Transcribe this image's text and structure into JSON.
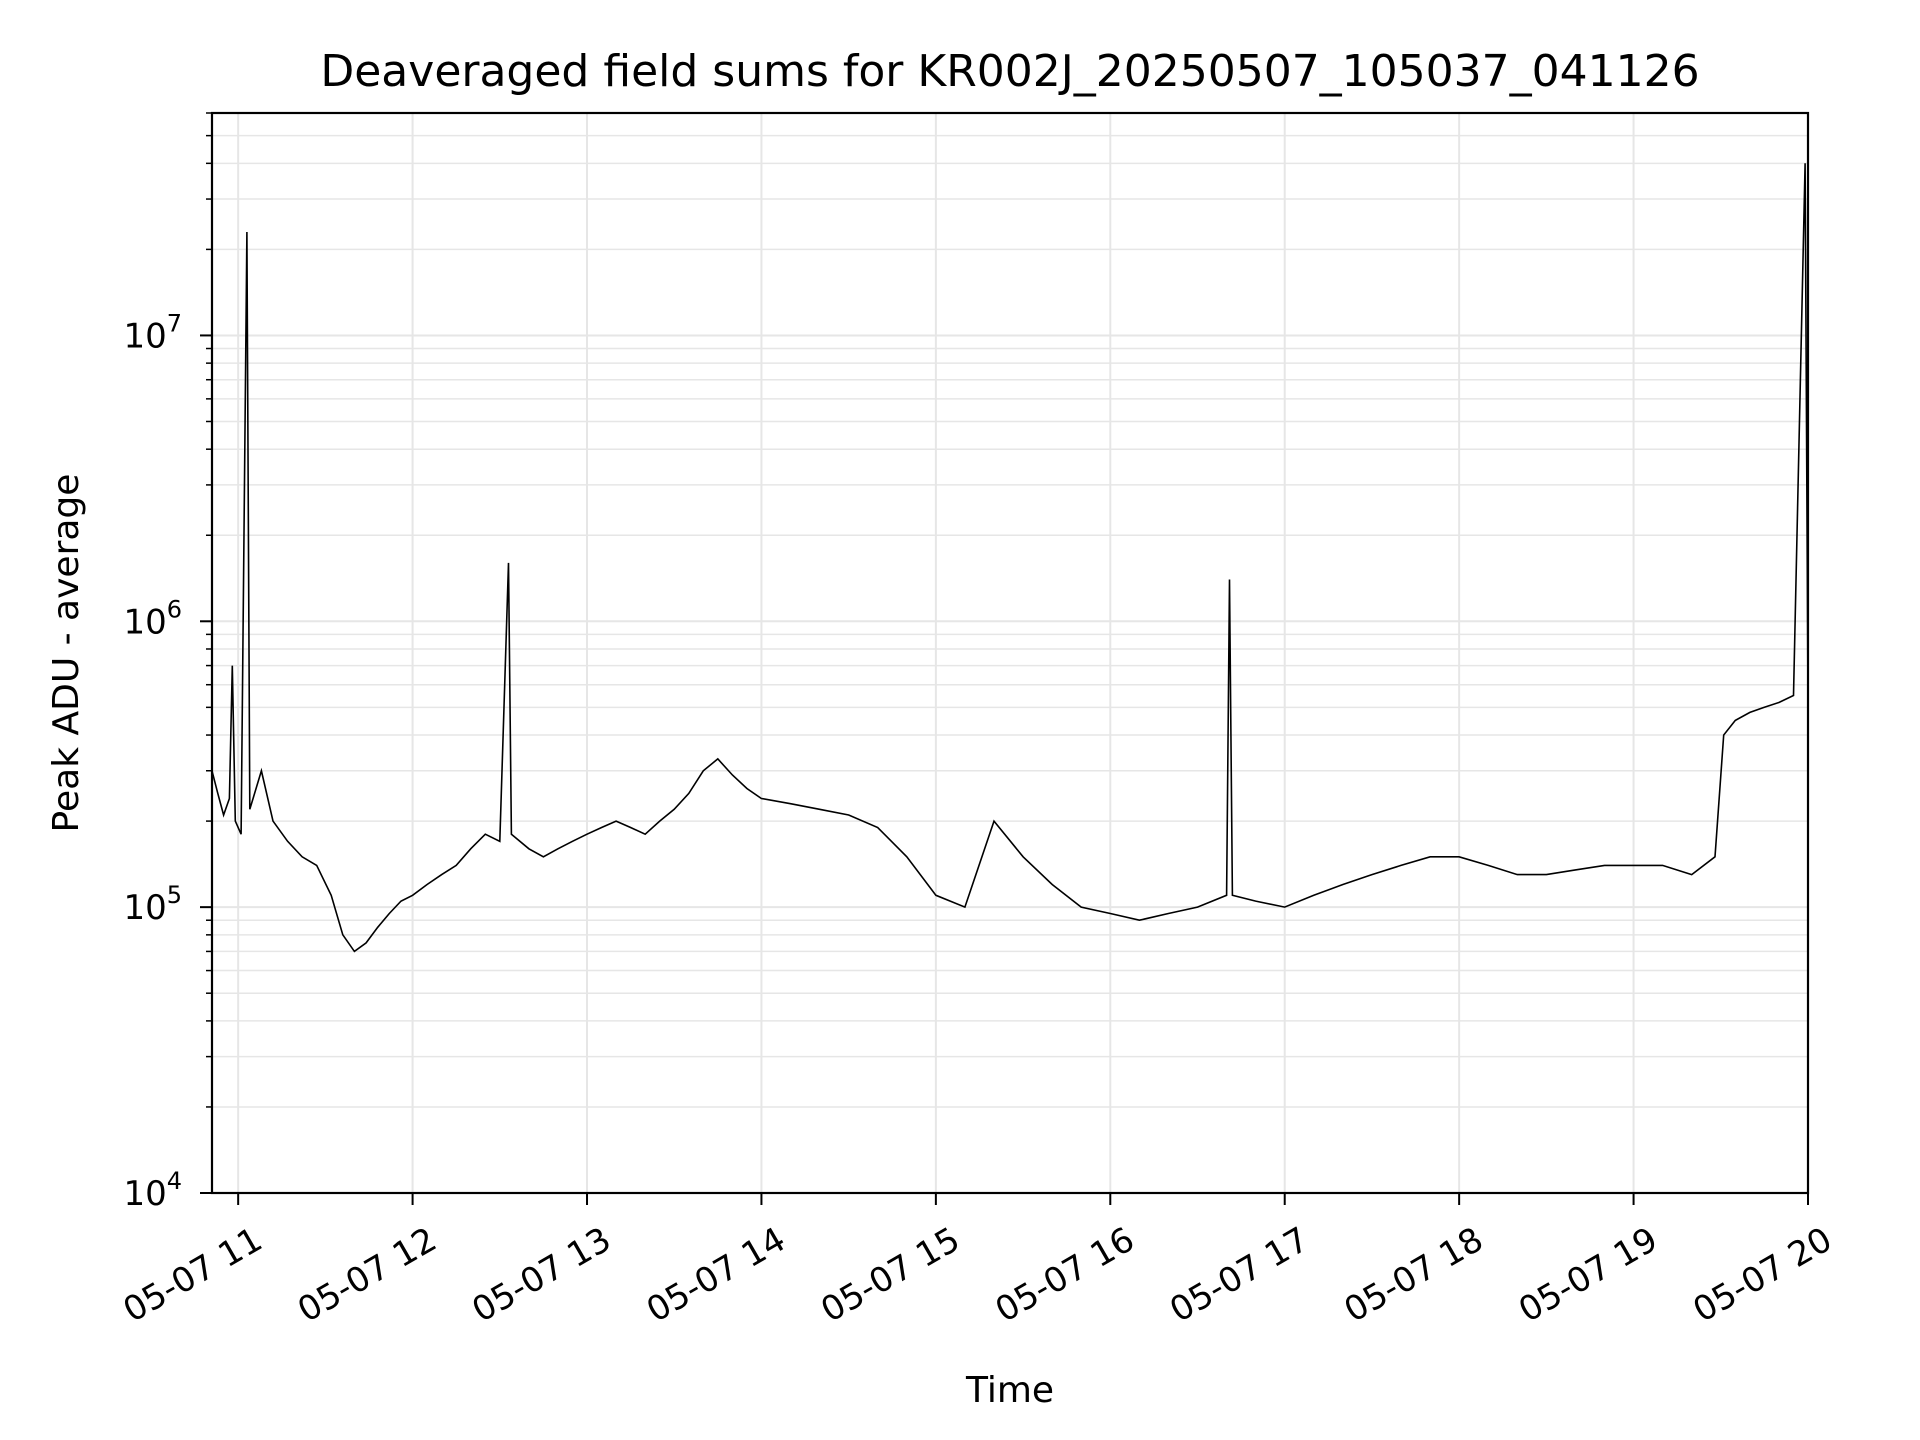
{
  "chart_data": {
    "type": "line",
    "title": "Deaveraged field sums for KR002J_20250507_105037_041126",
    "xlabel": "Time",
    "ylabel": "Peak ADU - average",
    "yscale": "log",
    "ylim": [
      10000,
      60000000
    ],
    "xlim": [
      "2025-05-07 10:51",
      "2025-05-07 20:00"
    ],
    "x_ticks": [
      {
        "time": "2025-05-07 11:00",
        "label": "05-07 11"
      },
      {
        "time": "2025-05-07 12:00",
        "label": "05-07 12"
      },
      {
        "time": "2025-05-07 13:00",
        "label": "05-07 13"
      },
      {
        "time": "2025-05-07 14:00",
        "label": "05-07 14"
      },
      {
        "time": "2025-05-07 15:00",
        "label": "05-07 15"
      },
      {
        "time": "2025-05-07 16:00",
        "label": "05-07 16"
      },
      {
        "time": "2025-05-07 17:00",
        "label": "05-07 17"
      },
      {
        "time": "2025-05-07 18:00",
        "label": "05-07 18"
      },
      {
        "time": "2025-05-07 19:00",
        "label": "05-07 19"
      },
      {
        "time": "2025-05-07 20:00",
        "label": "05-07 20"
      }
    ],
    "y_ticks": [
      {
        "value": 10000,
        "base": "10",
        "exp": "4"
      },
      {
        "value": 100000,
        "base": "10",
        "exp": "5"
      },
      {
        "value": 1000000,
        "base": "10",
        "exp": "6"
      },
      {
        "value": 10000000,
        "base": "10",
        "exp": "7"
      }
    ],
    "grid": true,
    "line_color": "#000000",
    "grid_color": "#e6e6e6",
    "series": [
      {
        "points": [
          [
            "2025-05-07 10:51",
            300000
          ],
          [
            "2025-05-07 10:53",
            250000
          ],
          [
            "2025-05-07 10:55",
            210000
          ],
          [
            "2025-05-07 10:57",
            240000
          ],
          [
            "2025-05-07 10:58",
            700000
          ],
          [
            "2025-05-07 10:59",
            200000
          ],
          [
            "2025-05-07 11:01",
            180000
          ],
          [
            "2025-05-07 11:03",
            23000000
          ],
          [
            "2025-05-07 11:04",
            220000
          ],
          [
            "2025-05-07 11:08",
            300000
          ],
          [
            "2025-05-07 11:12",
            200000
          ],
          [
            "2025-05-07 11:17",
            170000
          ],
          [
            "2025-05-07 11:22",
            150000
          ],
          [
            "2025-05-07 11:27",
            140000
          ],
          [
            "2025-05-07 11:32",
            110000
          ],
          [
            "2025-05-07 11:36",
            80000
          ],
          [
            "2025-05-07 11:40",
            70000
          ],
          [
            "2025-05-07 11:44",
            75000
          ],
          [
            "2025-05-07 11:48",
            85000
          ],
          [
            "2025-05-07 11:52",
            95000
          ],
          [
            "2025-05-07 11:56",
            105000
          ],
          [
            "2025-05-07 12:00",
            110000
          ],
          [
            "2025-05-07 12:05",
            120000
          ],
          [
            "2025-05-07 12:10",
            130000
          ],
          [
            "2025-05-07 12:15",
            140000
          ],
          [
            "2025-05-07 12:20",
            160000
          ],
          [
            "2025-05-07 12:25",
            180000
          ],
          [
            "2025-05-07 12:30",
            170000
          ],
          [
            "2025-05-07 12:33",
            1600000
          ],
          [
            "2025-05-07 12:34",
            180000
          ],
          [
            "2025-05-07 12:40",
            160000
          ],
          [
            "2025-05-07 12:45",
            150000
          ],
          [
            "2025-05-07 12:50",
            160000
          ],
          [
            "2025-05-07 12:55",
            170000
          ],
          [
            "2025-05-07 13:00",
            180000
          ],
          [
            "2025-05-07 13:05",
            190000
          ],
          [
            "2025-05-07 13:10",
            200000
          ],
          [
            "2025-05-07 13:15",
            190000
          ],
          [
            "2025-05-07 13:20",
            180000
          ],
          [
            "2025-05-07 13:25",
            200000
          ],
          [
            "2025-05-07 13:30",
            220000
          ],
          [
            "2025-05-07 13:35",
            250000
          ],
          [
            "2025-05-07 13:40",
            300000
          ],
          [
            "2025-05-07 13:45",
            330000
          ],
          [
            "2025-05-07 13:50",
            290000
          ],
          [
            "2025-05-07 13:55",
            260000
          ],
          [
            "2025-05-07 14:00",
            240000
          ],
          [
            "2025-05-07 14:10",
            230000
          ],
          [
            "2025-05-07 14:20",
            220000
          ],
          [
            "2025-05-07 14:30",
            210000
          ],
          [
            "2025-05-07 14:40",
            190000
          ],
          [
            "2025-05-07 14:50",
            150000
          ],
          [
            "2025-05-07 15:00",
            110000
          ],
          [
            "2025-05-07 15:10",
            100000
          ],
          [
            "2025-05-07 15:20",
            200000
          ],
          [
            "2025-05-07 15:30",
            150000
          ],
          [
            "2025-05-07 15:40",
            120000
          ],
          [
            "2025-05-07 15:50",
            100000
          ],
          [
            "2025-05-07 16:00",
            95000
          ],
          [
            "2025-05-07 16:10",
            90000
          ],
          [
            "2025-05-07 16:20",
            95000
          ],
          [
            "2025-05-07 16:30",
            100000
          ],
          [
            "2025-05-07 16:40",
            110000
          ],
          [
            "2025-05-07 16:41",
            1400000
          ],
          [
            "2025-05-07 16:42",
            110000
          ],
          [
            "2025-05-07 16:50",
            105000
          ],
          [
            "2025-05-07 17:00",
            100000
          ],
          [
            "2025-05-07 17:10",
            110000
          ],
          [
            "2025-05-07 17:20",
            120000
          ],
          [
            "2025-05-07 17:30",
            130000
          ],
          [
            "2025-05-07 17:40",
            140000
          ],
          [
            "2025-05-07 17:50",
            150000
          ],
          [
            "2025-05-07 18:00",
            150000
          ],
          [
            "2025-05-07 18:10",
            140000
          ],
          [
            "2025-05-07 18:20",
            130000
          ],
          [
            "2025-05-07 18:30",
            130000
          ],
          [
            "2025-05-07 18:40",
            135000
          ],
          [
            "2025-05-07 18:50",
            140000
          ],
          [
            "2025-05-07 19:00",
            140000
          ],
          [
            "2025-05-07 19:10",
            140000
          ],
          [
            "2025-05-07 19:20",
            130000
          ],
          [
            "2025-05-07 19:28",
            150000
          ],
          [
            "2025-05-07 19:31",
            400000
          ],
          [
            "2025-05-07 19:35",
            450000
          ],
          [
            "2025-05-07 19:40",
            480000
          ],
          [
            "2025-05-07 19:45",
            500000
          ],
          [
            "2025-05-07 19:50",
            520000
          ],
          [
            "2025-05-07 19:55",
            550000
          ],
          [
            "2025-05-07 19:59",
            40000000
          ],
          [
            "2025-05-07 20:00",
            520000
          ]
        ]
      }
    ]
  }
}
